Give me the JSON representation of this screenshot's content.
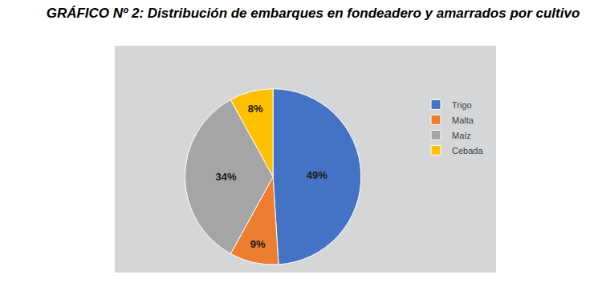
{
  "chart_data": {
    "type": "pie",
    "title": "GRÁFICO Nº 2: Distribución de embarques en fondeadero y amarrados por cultivo",
    "categories": [
      "Trigo",
      "Malta",
      "Maíz",
      "Cebada"
    ],
    "values": [
      49,
      9,
      34,
      8
    ],
    "value_labels": [
      "49%",
      "9%",
      "34%",
      "8%"
    ],
    "colors": [
      "#4472c4",
      "#ed7d31",
      "#a5a5a5",
      "#ffc000"
    ],
    "data_labels": true,
    "legend": "right"
  }
}
